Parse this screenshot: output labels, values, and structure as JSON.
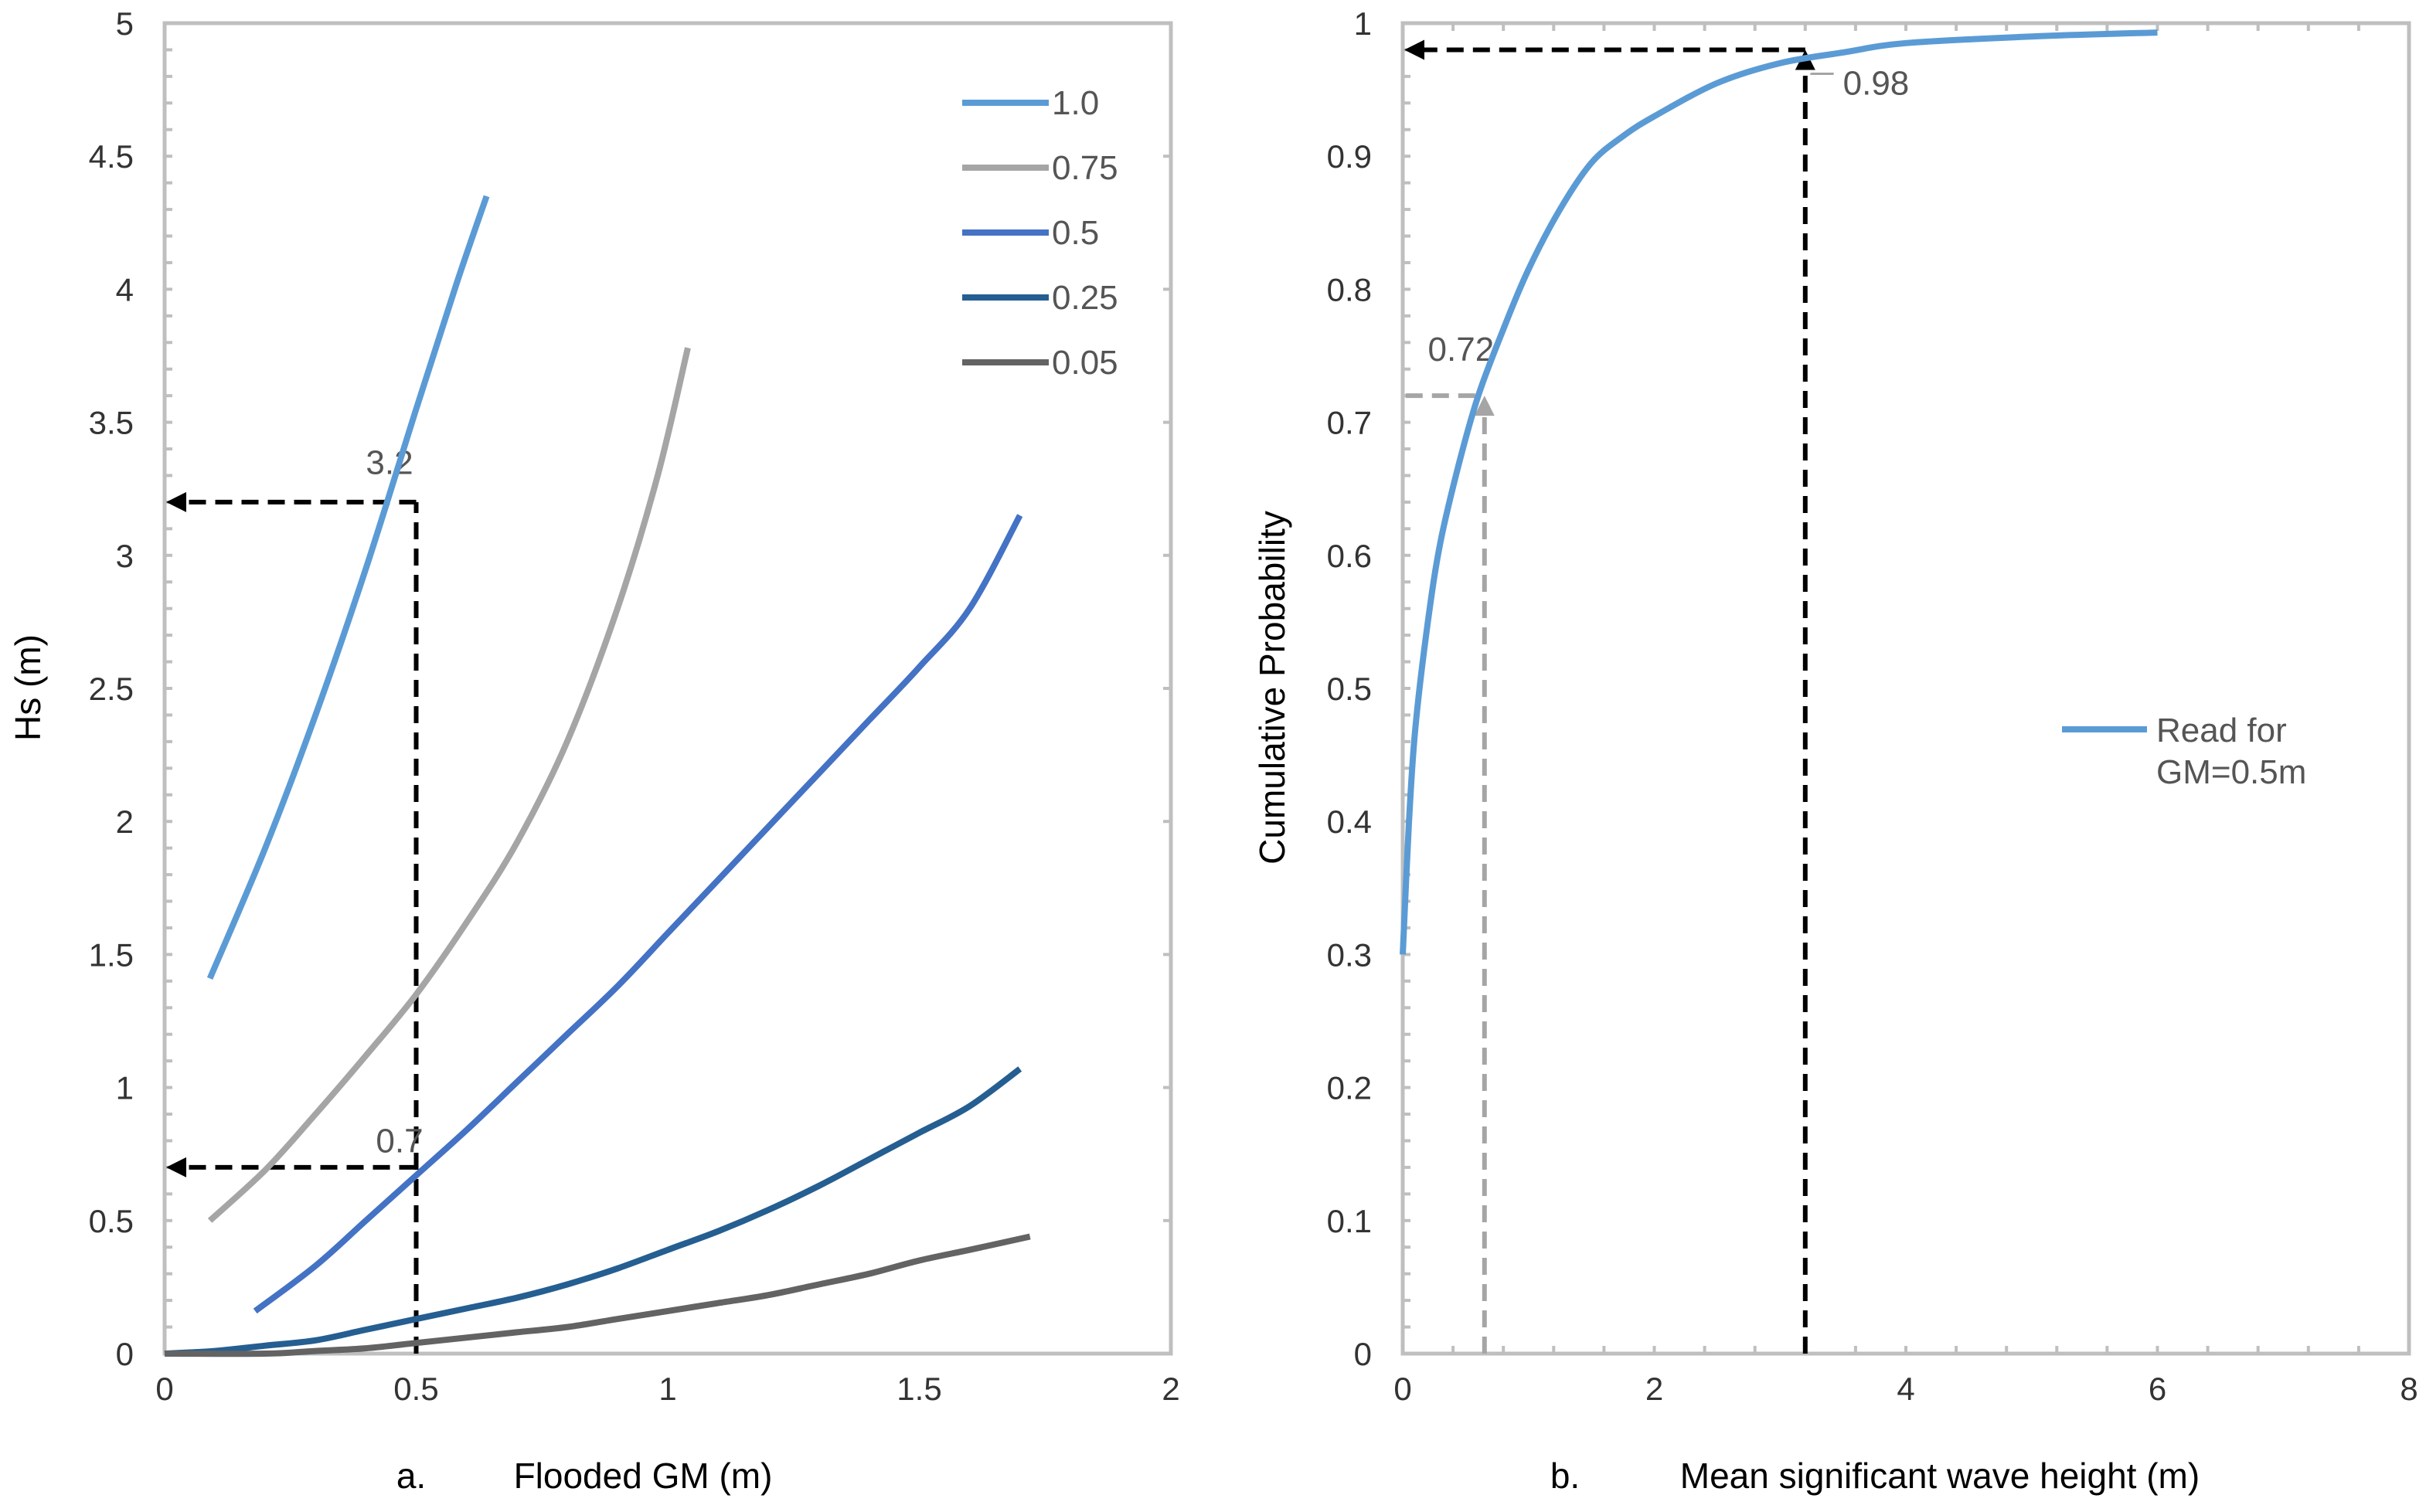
{
  "chart_data": [
    {
      "type": "line",
      "caption_letter": "a.",
      "xlabel": "Flooded GM (m)",
      "ylabel": "Hs (m)",
      "xlim": [
        0,
        2
      ],
      "ylim": [
        0,
        5
      ],
      "x_ticks": [
        0,
        0.5,
        1,
        1.5,
        2
      ],
      "x_tick_labels": [
        "0",
        "0.5",
        "1",
        "1.5",
        "2"
      ],
      "y_ticks": [
        0,
        0.5,
        1,
        1.5,
        2,
        2.5,
        3,
        3.5,
        4,
        4.5,
        5
      ],
      "y_tick_labels": [
        "0",
        "0.5",
        "1",
        "1.5",
        "2",
        "2.5",
        "3",
        "3.5",
        "4",
        "4.5",
        "5"
      ],
      "legend_position": "top-right",
      "series": [
        {
          "name": "1.0",
          "color": "#5b9bd5",
          "x": [
            0.09,
            0.2,
            0.3,
            0.4,
            0.5,
            0.58,
            0.64
          ],
          "y": [
            1.41,
            1.9,
            2.4,
            2.95,
            3.55,
            4.02,
            4.35
          ]
        },
        {
          "name": "0.75",
          "color": "#a5a5a5",
          "x": [
            0.09,
            0.2,
            0.3,
            0.4,
            0.5,
            0.6,
            0.7,
            0.8,
            0.9,
            0.98,
            1.04
          ],
          "y": [
            0.5,
            0.69,
            0.9,
            1.12,
            1.35,
            1.62,
            1.92,
            2.3,
            2.8,
            3.3,
            3.78
          ]
        },
        {
          "name": "0.5",
          "color": "#4472c4",
          "x": [
            0.18,
            0.3,
            0.4,
            0.5,
            0.6,
            0.7,
            0.8,
            0.9,
            1.0,
            1.1,
            1.2,
            1.3,
            1.4,
            1.5,
            1.6,
            1.7
          ],
          "y": [
            0.16,
            0.33,
            0.5,
            0.67,
            0.84,
            1.02,
            1.2,
            1.38,
            1.58,
            1.78,
            1.98,
            2.18,
            2.38,
            2.58,
            2.8,
            3.15
          ]
        },
        {
          "name": "0.25",
          "color": "#255e91",
          "x": [
            0.0,
            0.1,
            0.2,
            0.3,
            0.4,
            0.5,
            0.6,
            0.7,
            0.8,
            0.9,
            1.0,
            1.1,
            1.2,
            1.3,
            1.4,
            1.5,
            1.6,
            1.7
          ],
          "y": [
            0.0,
            0.01,
            0.03,
            0.05,
            0.09,
            0.13,
            0.17,
            0.21,
            0.26,
            0.32,
            0.39,
            0.46,
            0.54,
            0.63,
            0.73,
            0.83,
            0.93,
            1.07
          ]
        },
        {
          "name": "0.05",
          "color": "#636363",
          "x": [
            0.0,
            0.2,
            0.3,
            0.4,
            0.5,
            0.6,
            0.7,
            0.8,
            0.9,
            1.0,
            1.1,
            1.2,
            1.3,
            1.4,
            1.5,
            1.6,
            1.72
          ],
          "y": [
            0.0,
            0.0,
            0.01,
            0.02,
            0.04,
            0.06,
            0.08,
            0.1,
            0.13,
            0.16,
            0.19,
            0.22,
            0.26,
            0.3,
            0.35,
            0.39,
            0.44
          ]
        }
      ],
      "guides": [
        {
          "label": "3.2",
          "from": [
            0.5,
            0
          ],
          "corner": [
            0.5,
            3.2
          ],
          "to": [
            0,
            3.2
          ],
          "color": "#000000",
          "label_at": [
            0.4,
            3.35
          ]
        },
        {
          "label": "0.7",
          "from": [
            0.5,
            0
          ],
          "corner": [
            0.5,
            0.7
          ],
          "to": [
            0,
            0.7
          ],
          "color": "#000000",
          "label_at": [
            0.42,
            0.8
          ]
        }
      ]
    },
    {
      "type": "line",
      "caption_letter": "b.",
      "xlabel": "Mean significant wave height (m)",
      "ylabel": "Cumulative  Probability",
      "xlim": [
        0,
        8
      ],
      "ylim": [
        0,
        1
      ],
      "x_ticks": [
        0,
        2,
        4,
        6,
        8
      ],
      "x_tick_labels": [
        "0",
        "2",
        "4",
        "6",
        "8"
      ],
      "y_ticks": [
        0,
        0.1,
        0.2,
        0.3,
        0.4,
        0.5,
        0.6,
        0.7,
        0.8,
        0.9,
        1
      ],
      "y_tick_labels": [
        "0",
        "0.1",
        "0.2",
        "0.3",
        "0.4",
        "0.5",
        "0.6",
        "0.7",
        "0.8",
        "0.9",
        "1"
      ],
      "legend_position": "right",
      "legend_lines": [
        "Read for",
        "GM=0.5m"
      ],
      "series": [
        {
          "name": "Read for GM=0.5m",
          "color": "#5b9bd5",
          "x": [
            0.0,
            0.05,
            0.1,
            0.2,
            0.3,
            0.45,
            0.6,
            0.8,
            1.0,
            1.25,
            1.5,
            1.75,
            2.0,
            2.5,
            3.0,
            3.5,
            4.0,
            5.0,
            6.0
          ],
          "y": [
            0.3,
            0.4,
            0.47,
            0.55,
            0.61,
            0.67,
            0.72,
            0.77,
            0.815,
            0.86,
            0.895,
            0.915,
            0.93,
            0.955,
            0.97,
            0.978,
            0.985,
            0.99,
            0.993
          ]
        }
      ],
      "guides": [
        {
          "label": "0.98",
          "from": [
            3.2,
            0
          ],
          "corner": [
            3.2,
            0.98
          ],
          "to": [
            0,
            0.98
          ],
          "color": "#000000",
          "label_at": [
            3.5,
            0.955
          ]
        },
        {
          "label": "0.72",
          "from": [
            0.65,
            0
          ],
          "corner": [
            0.65,
            0.72
          ],
          "to": [
            0,
            0.72
          ],
          "color": "#a5a5a5",
          "label_at": [
            0.2,
            0.755
          ]
        }
      ]
    }
  ]
}
